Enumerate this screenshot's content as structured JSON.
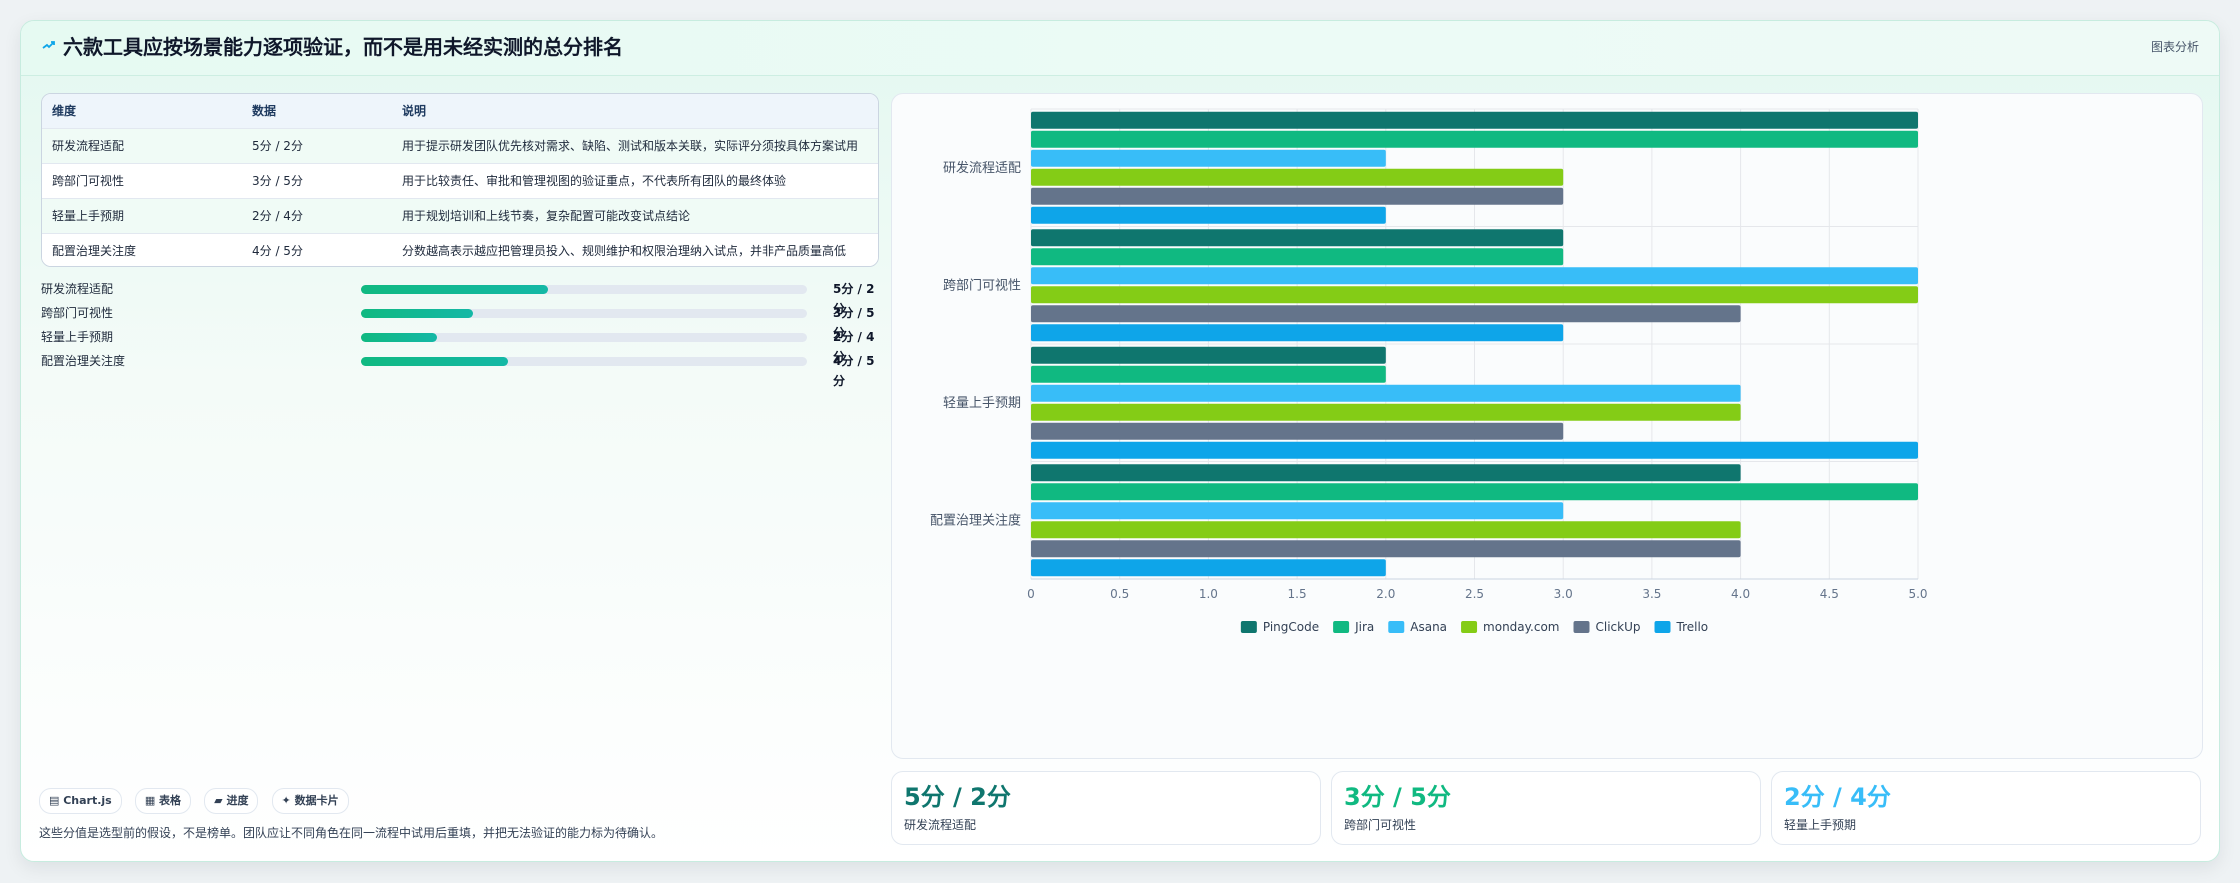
{
  "header": {
    "title": "六款工具应按场景能力逐项验证，而不是用未经实测的总分排名",
    "tag": "图表分析"
  },
  "table": {
    "columns": [
      "维度",
      "数据",
      "说明"
    ],
    "rows": [
      [
        "研发流程适配",
        "5分 / 2分",
        "用于提示研发团队优先核对需求、缺陷、测试和版本关联，实际评分须按具体方案试用"
      ],
      [
        "跨部门可视性",
        "3分 / 5分",
        "用于比较责任、审批和管理视图的验证重点，不代表所有团队的最终体验"
      ],
      [
        "轻量上手预期",
        "2分 / 4分",
        "用于规划培训和上线节奏，复杂配置可能改变试点结论"
      ],
      [
        "配置治理关注度",
        "4分 / 5分",
        "分数越高表示越应把管理员投入、规则维护和权限治理纳入试点，并非产品质量高低"
      ]
    ]
  },
  "progress": [
    {
      "label": "研发流程适配",
      "value": "5分 / 2分",
      "fraction": 0.42
    },
    {
      "label": "跨部门可视性",
      "value": "3分 / 5分",
      "fraction": 0.25
    },
    {
      "label": "轻量上手预期",
      "value": "2分 / 4分",
      "fraction": 0.17
    },
    {
      "label": "配置治理关注度",
      "value": "4分 / 5分",
      "fraction": 0.33
    }
  ],
  "chips": [
    "▤ Chart.js",
    "▦ 表格",
    "▰ 进度",
    "✦ 数据卡片"
  ],
  "note": "这些分值是选型前的假设，不是榜单。团队应让不同角色在同一流程中试用后重填，并把无法验证的能力标为待确认。",
  "kpis": [
    {
      "value": "5分 / 2分",
      "label": "研发流程适配",
      "color": "#0f766e"
    },
    {
      "value": "3分 / 5分",
      "label": "跨部门可视性",
      "color": "#10b981"
    },
    {
      "value": "2分 / 4分",
      "label": "轻量上手预期",
      "color": "#38bdf8"
    }
  ],
  "chart_data": {
    "type": "bar",
    "orientation": "horizontal",
    "categories": [
      "研发流程适配",
      "跨部门可视性",
      "轻量上手预期",
      "配置治理关注度"
    ],
    "series": [
      {
        "name": "PingCode",
        "color": "#0f766e",
        "values": [
          5,
          3,
          2,
          4
        ]
      },
      {
        "name": "Jira",
        "color": "#10b981",
        "values": [
          5,
          3,
          2,
          5
        ]
      },
      {
        "name": "Asana",
        "color": "#38bdf8",
        "values": [
          2,
          5,
          4,
          3
        ]
      },
      {
        "name": "monday.com",
        "color": "#84cc16",
        "values": [
          3,
          5,
          4,
          4
        ]
      },
      {
        "name": "ClickUp",
        "color": "#64748b",
        "values": [
          3,
          4,
          3,
          4
        ]
      },
      {
        "name": "Trello",
        "color": "#0ea5e9",
        "values": [
          2,
          3,
          5,
          2
        ]
      }
    ],
    "xlim": [
      0,
      5
    ],
    "xticks": [
      "0",
      "0.5",
      "1.0",
      "1.5",
      "2.0",
      "2.5",
      "3.0",
      "3.5",
      "4.0",
      "4.5",
      "5.0"
    ],
    "grid": true,
    "legend": "bottom"
  }
}
